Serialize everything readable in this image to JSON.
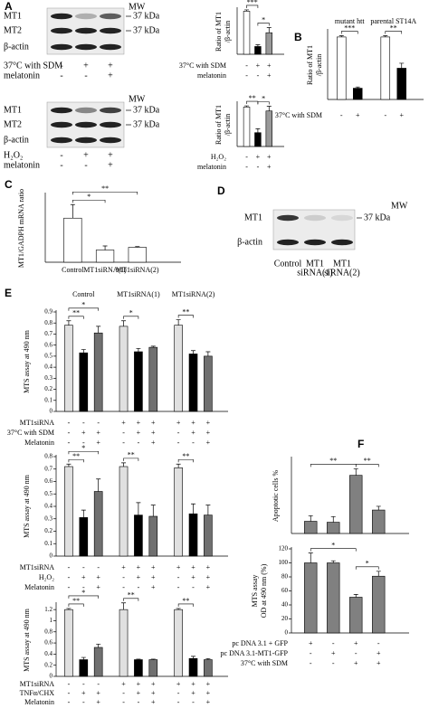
{
  "panel_labels": [
    "A",
    "B",
    "C",
    "D",
    "E",
    "F"
  ],
  "blots": [
    {
      "rows": [
        "MT1",
        "MT2",
        "β-actin"
      ],
      "mw": "MW",
      "markers": [
        "37 kDa",
        "37 kDa"
      ],
      "conditions": [
        {
          "name": "37°C with SDM",
          "signs": [
            "-",
            "+",
            "+"
          ]
        },
        {
          "name": "melatonin",
          "signs": [
            "-",
            "-",
            "+"
          ]
        }
      ]
    },
    {
      "rows": [
        "MT1",
        "MT2",
        "β-actin"
      ],
      "mw": "MW",
      "markers": [
        "37 kDa",
        "37 kDa"
      ],
      "conditions": [
        {
          "name": "H₂O₂",
          "signs": [
            "-",
            "+",
            "+"
          ]
        },
        {
          "name": "melatonin",
          "signs": [
            "-",
            "-",
            "+"
          ]
        }
      ]
    },
    {
      "rows": [
        "MT1",
        "β-actin"
      ],
      "mw": "MW",
      "markers": [
        "37 kDa"
      ],
      "lanes": [
        [
          "Control"
        ],
        [
          "MT1",
          "siRNA(1)"
        ],
        [
          "MT1",
          "siRNA(2)"
        ]
      ]
    }
  ],
  "chart_data": [
    {
      "type": "bar",
      "ylabel": [
        "Ratio of MT1",
        "/β-actin"
      ],
      "values": [
        1,
        0.18,
        0.5
      ],
      "errors": [
        0.03,
        0.04,
        0.12
      ],
      "colors": [
        "#ffffff",
        "#000000",
        "#999999"
      ],
      "ylim": [
        0,
        1.05
      ],
      "conditions": [
        {
          "name": "37°C with SDM",
          "signs": [
            "-",
            "+",
            "+"
          ]
        },
        {
          "name": "melatonin",
          "signs": [
            "-",
            "-",
            "+"
          ]
        }
      ],
      "significance": [
        "***",
        "*"
      ]
    },
    {
      "type": "bar",
      "ylabel": [
        "Ratio of MT1",
        "/β-actin"
      ],
      "values": [
        1,
        0.35,
        0.9
      ],
      "errors": [
        0.03,
        0.1,
        0.12
      ],
      "colors": [
        "#ffffff",
        "#000000",
        "#999999"
      ],
      "ylim": [
        0,
        1.1
      ],
      "conditions": [
        {
          "name": "H₂O₂",
          "signs": [
            "-",
            "+",
            "+"
          ]
        },
        {
          "name": "melatonin",
          "signs": [
            "-",
            "-",
            "+"
          ]
        }
      ],
      "significance": [
        "**",
        "*"
      ]
    },
    {
      "type": "bar",
      "ylabel": [
        "Ratio of MT1",
        "/β-actin"
      ],
      "groups": [
        "mutant htt",
        "parental ST14A"
      ],
      "values": [
        1,
        0.18,
        1,
        0.5
      ],
      "errors": [
        0.02,
        0.02,
        0.02,
        0.08
      ],
      "colors": [
        "#ffffff",
        "#000000",
        "#ffffff",
        "#000000"
      ],
      "ylim": [
        0,
        1.1
      ],
      "conditions": [
        {
          "name": "37°C with SDM",
          "signs": [
            "-",
            "+",
            "-",
            "+"
          ]
        }
      ],
      "significance": [
        "***",
        "**"
      ]
    },
    {
      "type": "bar",
      "ylabel": [
        "MT1/GADPH mRNA ratio"
      ],
      "categories": [
        "Control",
        "MT1siRNA(1)",
        "MT1siRNA(2)"
      ],
      "values": [
        6.5,
        1.8,
        2.2
      ],
      "errors": [
        2,
        0.6,
        0.1
      ],
      "colors": [
        "#ffffff",
        "#ffffff",
        "#ffffff"
      ],
      "ylim": [
        0,
        10
      ],
      "significance": [
        "*",
        "**"
      ]
    },
    {
      "type": "bar",
      "ylabel": [
        "MTS assay  at 490 nm"
      ],
      "groups": [
        "Control",
        "MT1siRNA(1)",
        "MT1siRNA(2)"
      ],
      "values": [
        0.78,
        0.53,
        0.71,
        0.77,
        0.54,
        0.58,
        0.78,
        0.52,
        0.5
      ],
      "errors": [
        0.04,
        0.03,
        0.06,
        0.05,
        0.03,
        0.01,
        0.05,
        0.03,
        0.04
      ],
      "colors": [
        "#e0e0e0",
        "#000000",
        "#707070",
        "#e0e0e0",
        "#000000",
        "#707070",
        "#e0e0e0",
        "#000000",
        "#707070"
      ],
      "ylim": [
        0,
        0.9
      ],
      "yticks": [
        0,
        0.1,
        0.2,
        0.3,
        0.4,
        0.5,
        0.6,
        0.7,
        0.8,
        0.9
      ],
      "conditions": [
        {
          "name": "MT1siRNA",
          "signs": [
            "-",
            "-",
            "-",
            "+",
            "+",
            "+",
            "+",
            "+",
            "+"
          ]
        },
        {
          "name": "37°C with SDM",
          "signs": [
            "-",
            "+",
            "+",
            "-",
            "+",
            "+",
            "-",
            "+",
            "+"
          ]
        },
        {
          "name": "Melatonin",
          "signs": [
            "-",
            "-",
            "+",
            "-",
            "-",
            "+",
            "-",
            "-",
            "+"
          ]
        }
      ],
      "significance": [
        "**",
        "*",
        "*",
        "**"
      ]
    },
    {
      "type": "bar",
      "ylabel": [
        "MTS assay  at 490 nm"
      ],
      "values": [
        0.72,
        0.31,
        0.52,
        0.72,
        0.33,
        0.32,
        0.71,
        0.34,
        0.33
      ],
      "errors": [
        0.02,
        0.06,
        0.1,
        0.03,
        0.1,
        0.09,
        0.03,
        0.08,
        0.08
      ],
      "colors": [
        "#e0e0e0",
        "#000000",
        "#707070",
        "#e0e0e0",
        "#000000",
        "#707070",
        "#e0e0e0",
        "#000000",
        "#707070"
      ],
      "ylim": [
        0,
        0.8
      ],
      "yticks": [
        0,
        0.1,
        0.2,
        0.3,
        0.4,
        0.5,
        0.6,
        0.7,
        0.8
      ],
      "conditions": [
        {
          "name": "MT1siRNA",
          "signs": [
            "-",
            "-",
            "-",
            "+",
            "+",
            "+",
            "+",
            "+",
            "+"
          ]
        },
        {
          "name": "H₂O₂",
          "signs": [
            "-",
            "+",
            "+",
            "-",
            "+",
            "+",
            "-",
            "+",
            "+"
          ]
        },
        {
          "name": "Melatonin",
          "signs": [
            "-",
            "-",
            "+",
            "-",
            "-",
            "+",
            "-",
            "-",
            "+"
          ]
        }
      ],
      "significance": [
        "**",
        "*",
        "**",
        "**"
      ]
    },
    {
      "type": "bar",
      "ylabel": [
        "MTS assay  at 490 nm"
      ],
      "values": [
        1.2,
        0.3,
        0.52,
        1.2,
        0.3,
        0.3,
        1.2,
        0.32,
        0.3
      ],
      "errors": [
        0.02,
        0.04,
        0.06,
        0.12,
        0.01,
        0.01,
        0.02,
        0.04,
        0.02
      ],
      "colors": [
        "#e0e0e0",
        "#000000",
        "#707070",
        "#e0e0e0",
        "#000000",
        "#707070",
        "#e0e0e0",
        "#000000",
        "#707070"
      ],
      "ylim": [
        0,
        1.3
      ],
      "yticks": [
        0,
        0.2,
        0.4,
        0.6,
        0.8,
        1,
        1.2
      ],
      "conditions": [
        {
          "name": "MT1siRNA",
          "signs": [
            "-",
            "-",
            "-",
            "+",
            "+",
            "+",
            "+",
            "+",
            "+"
          ]
        },
        {
          "name": "TNFα/CHX",
          "signs": [
            "-",
            "+",
            "+",
            "-",
            "+",
            "+",
            "-",
            "+",
            "+"
          ]
        },
        {
          "name": "Melatonin",
          "signs": [
            "-",
            "-",
            "+",
            "-",
            "-",
            "+",
            "-",
            "-",
            "+"
          ]
        }
      ],
      "significance": [
        "**",
        "*",
        "**",
        "**"
      ]
    },
    {
      "type": "bar",
      "ylabel": [
        "Apoptotic cells %"
      ],
      "values": [
        13,
        12,
        62,
        25
      ],
      "errors": [
        6,
        6,
        7,
        4
      ],
      "colors": [
        "#808080",
        "#808080",
        "#808080",
        "#808080"
      ],
      "ylim": [
        0,
        80
      ],
      "significance": [
        "**",
        "**"
      ]
    },
    {
      "type": "bar",
      "ylabel": [
        "MTS assay",
        "OD at 490 nm (%)"
      ],
      "values": [
        100,
        100,
        51,
        81
      ],
      "errors": [
        14,
        3,
        4,
        7
      ],
      "colors": [
        "#808080",
        "#808080",
        "#808080",
        "#808080"
      ],
      "ylim": [
        0,
        120
      ],
      "yticks": [
        0,
        20,
        40,
        60,
        80,
        100,
        120
      ],
      "conditions": [
        {
          "name": "pc DNA 3.1 + GFP",
          "signs": [
            "+",
            "-",
            "+",
            "-"
          ]
        },
        {
          "name": "pc DNA 3.1-MT1-GFP",
          "signs": [
            "-",
            "+",
            "-",
            "+"
          ]
        },
        {
          "name": "37°C with SDM",
          "signs": [
            "-",
            "-",
            "+",
            "+"
          ]
        }
      ],
      "significance": [
        "*",
        "*"
      ]
    }
  ]
}
